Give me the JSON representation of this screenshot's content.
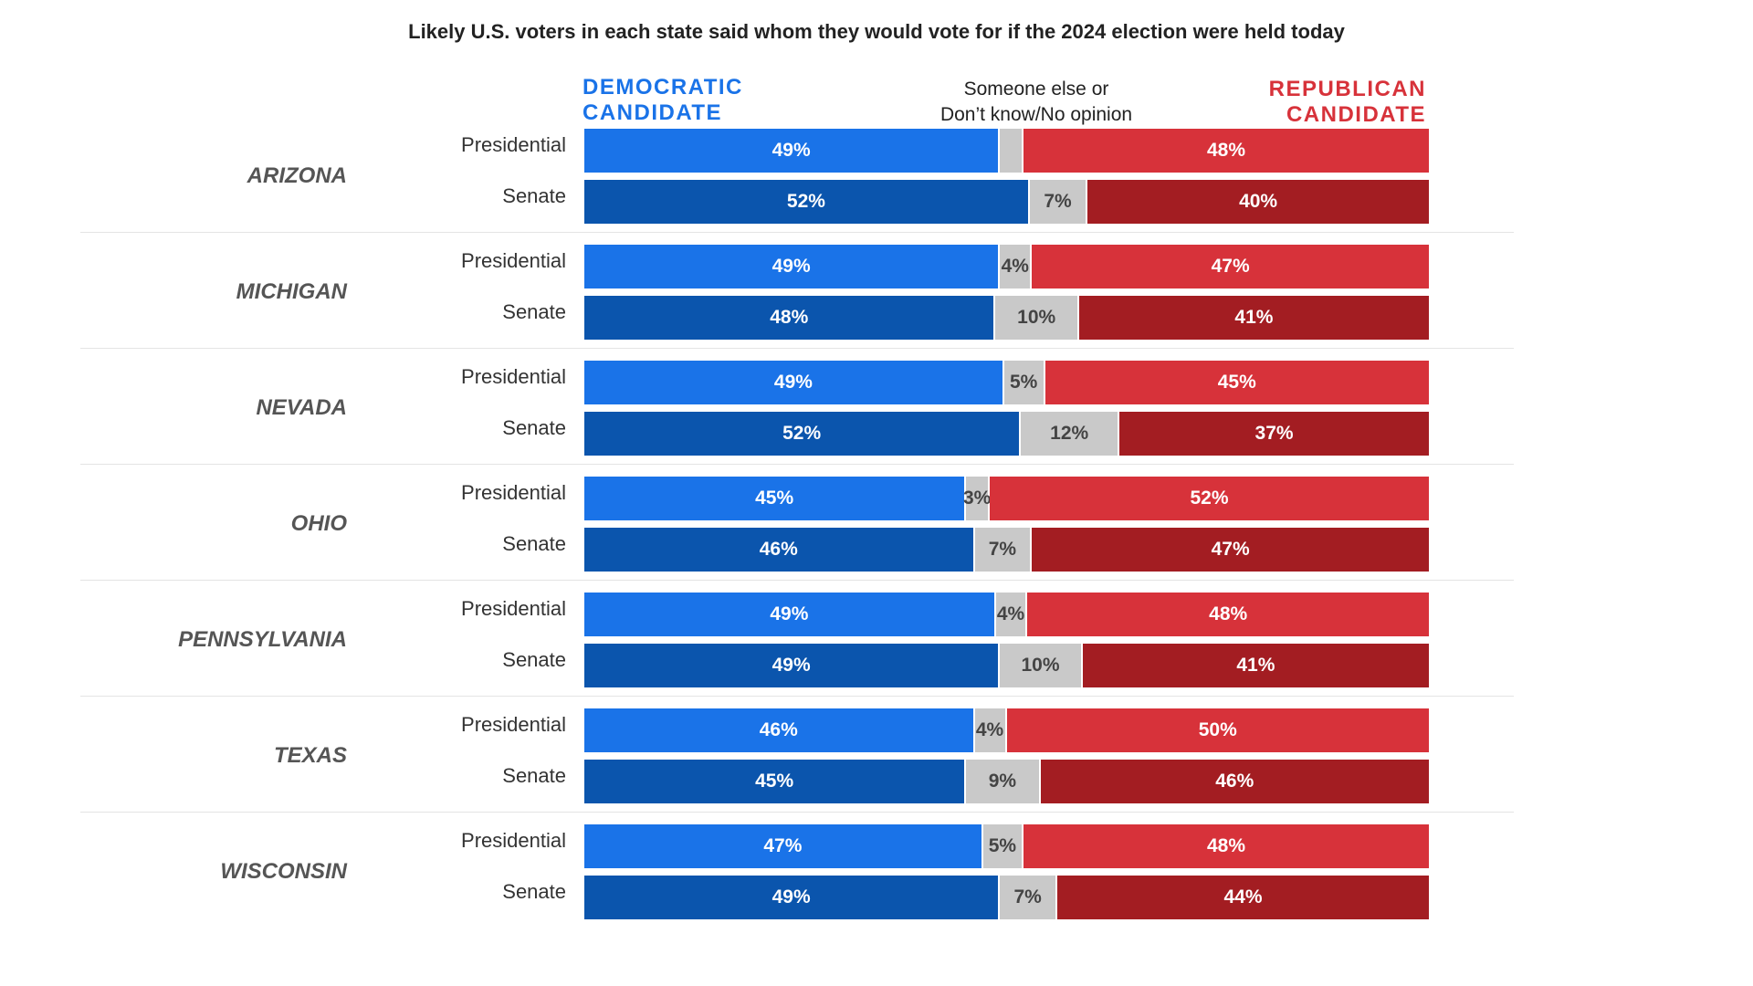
{
  "chart_data": {
    "type": "bar",
    "stacked": true,
    "orientation": "horizontal",
    "title": "Likely U.S. voters in each state said whom they would vote for if the 2024 election were held today",
    "legend": {
      "democratic": "DEMOCRATIC CANDIDATE",
      "other": "Someone else or Don’t know/No opinion",
      "republican": "REPUBLICAN CANDIDATE"
    },
    "colors": {
      "dem_presidential": "#1a73e8",
      "dem_senate": "#0b55ad",
      "other": "#c9c9c9",
      "rep_presidential": "#d7323a",
      "rep_senate": "#a31d22"
    },
    "states": [
      {
        "name": "ARIZONA",
        "rows": [
          {
            "race": "Presidential",
            "dem": 49,
            "other": 3,
            "rep": 48,
            "dem_label": "49%",
            "other_label": "",
            "rep_label": "48%"
          },
          {
            "race": "Senate",
            "dem": 52,
            "other": 7,
            "rep": 40,
            "dem_label": "52%",
            "other_label": "7%",
            "rep_label": "40%"
          }
        ]
      },
      {
        "name": "MICHIGAN",
        "rows": [
          {
            "race": "Presidential",
            "dem": 49,
            "other": 4,
            "rep": 47,
            "dem_label": "49%",
            "other_label": "4%",
            "rep_label": "47%"
          },
          {
            "race": "Senate",
            "dem": 48,
            "other": 10,
            "rep": 41,
            "dem_label": "48%",
            "other_label": "10%",
            "rep_label": "41%"
          }
        ]
      },
      {
        "name": "NEVADA",
        "rows": [
          {
            "race": "Presidential",
            "dem": 49,
            "other": 5,
            "rep": 45,
            "dem_label": "49%",
            "other_label": "5%",
            "rep_label": "45%"
          },
          {
            "race": "Senate",
            "dem": 52,
            "other": 12,
            "rep": 37,
            "dem_label": "52%",
            "other_label": "12%",
            "rep_label": "37%"
          }
        ]
      },
      {
        "name": "OHIO",
        "rows": [
          {
            "race": "Presidential",
            "dem": 45,
            "other": 3,
            "rep": 52,
            "dem_label": "45%",
            "other_label": "3%",
            "rep_label": "52%"
          },
          {
            "race": "Senate",
            "dem": 46,
            "other": 7,
            "rep": 47,
            "dem_label": "46%",
            "other_label": "7%",
            "rep_label": "47%"
          }
        ]
      },
      {
        "name": "PENNSYLVANIA",
        "rows": [
          {
            "race": "Presidential",
            "dem": 49,
            "other": 4,
            "rep": 48,
            "dem_label": "49%",
            "other_label": "4%",
            "rep_label": "48%"
          },
          {
            "race": "Senate",
            "dem": 49,
            "other": 10,
            "rep": 41,
            "dem_label": "49%",
            "other_label": "10%",
            "rep_label": "41%"
          }
        ]
      },
      {
        "name": "TEXAS",
        "rows": [
          {
            "race": "Presidential",
            "dem": 46,
            "other": 4,
            "rep": 50,
            "dem_label": "46%",
            "other_label": "4%",
            "rep_label": "50%"
          },
          {
            "race": "Senate",
            "dem": 45,
            "other": 9,
            "rep": 46,
            "dem_label": "45%",
            "other_label": "9%",
            "rep_label": "46%"
          }
        ]
      },
      {
        "name": "WISCONSIN",
        "rows": [
          {
            "race": "Presidential",
            "dem": 47,
            "other": 5,
            "rep": 48,
            "dem_label": "47%",
            "other_label": "5%",
            "rep_label": "48%"
          },
          {
            "race": "Senate",
            "dem": 49,
            "other": 7,
            "rep": 44,
            "dem_label": "49%",
            "other_label": "7%",
            "rep_label": "44%"
          }
        ]
      }
    ]
  }
}
